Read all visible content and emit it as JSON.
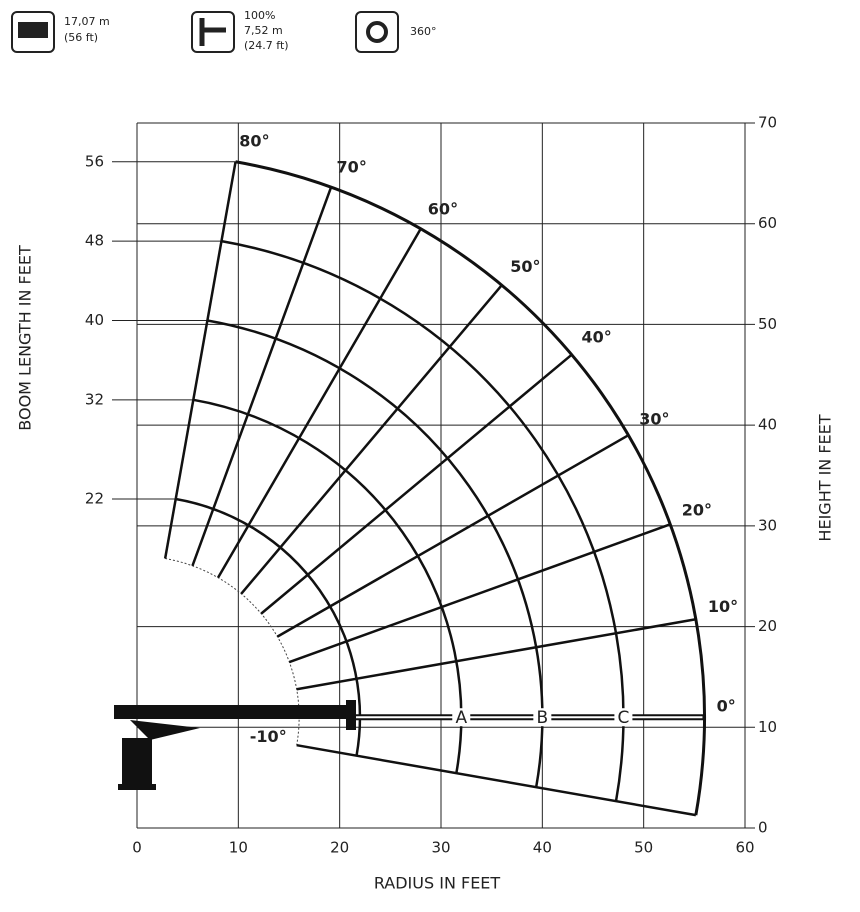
{
  "specs": {
    "boom_length": [
      "17,07 m",
      "(56 ft)"
    ],
    "jib": [
      "100%",
      "7,52 m",
      "(24.7 ft)"
    ],
    "rotation": "360°"
  },
  "chart_data": {
    "type": "range",
    "x_label": "RADIUS IN FEET",
    "y_label": "HEIGHT IN FEET",
    "boom_label": "BOOM LENGTH IN FEET",
    "xlim": [
      0,
      60
    ],
    "xticks": [
      0,
      10,
      20,
      30,
      40,
      50,
      60
    ],
    "ylim": [
      0,
      70
    ],
    "yticks": [
      0,
      10,
      20,
      30,
      40,
      50,
      60,
      70
    ],
    "grid": true,
    "color": "#111111",
    "boom_lengths": [
      56,
      48,
      40,
      32,
      22
    ],
    "angles": [
      {
        "value": 80,
        "label": "80°"
      },
      {
        "value": 70,
        "label": "70°"
      },
      {
        "value": 60,
        "label": "60°"
      },
      {
        "value": 50,
        "label": "50°"
      },
      {
        "value": 40,
        "label": "40°"
      },
      {
        "value": 30,
        "label": "30°"
      },
      {
        "value": 20,
        "label": "20°"
      },
      {
        "value": 10,
        "label": "10°"
      },
      {
        "value": 0,
        "label": "0°"
      },
      {
        "value": -10,
        "label": "-10°"
      }
    ],
    "zones": [
      "A",
      "B",
      "C"
    ]
  }
}
